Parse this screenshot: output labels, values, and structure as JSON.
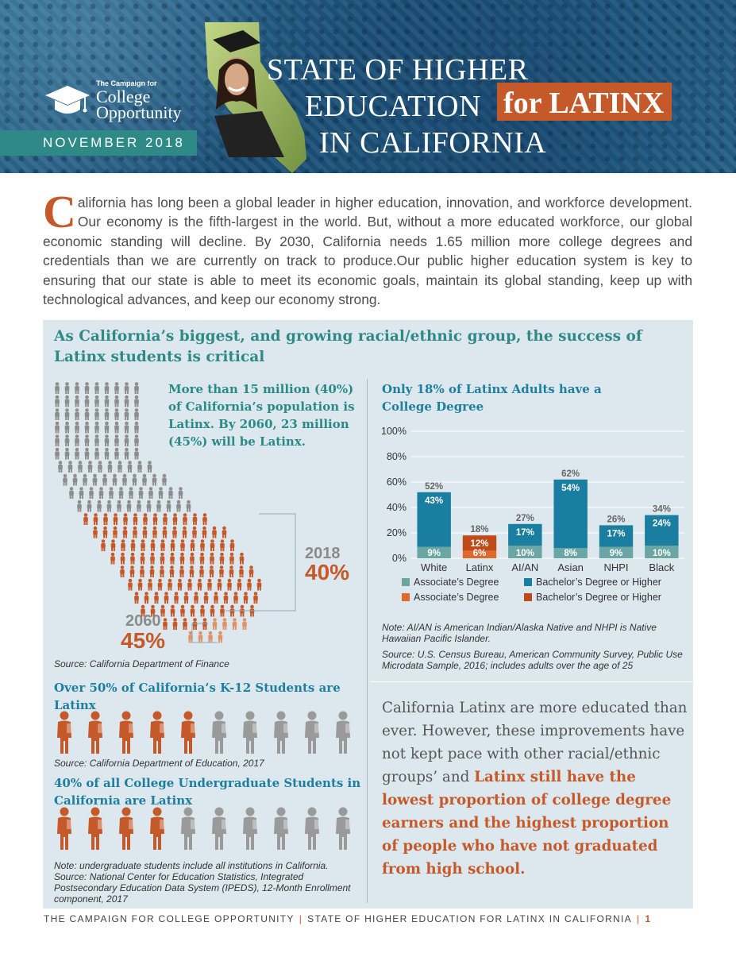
{
  "header": {
    "logo_small": "The Campaign for",
    "logo_line1": "College",
    "logo_line2": "Opportunity",
    "date": "NOVEMBER 2018",
    "title_line1": "STATE OF HIGHER",
    "title_line2": "EDUCATION",
    "title_highlight": "for LATINX",
    "title_line3": "IN CALIFORNIA",
    "colors": {
      "banner": "#1b4f77",
      "accent": "#c6592a",
      "teal": "#2f8a87"
    }
  },
  "intro": {
    "dropcap": "C",
    "text": "alifornia has long been a global leader in higher education, innovation, and workforce development. Our economy is the fifth-largest in the world. But, without a more educated workforce, our global economic standing will decline. By 2030, California needs 1.65 million more college degrees and credentials than we are currently on track to produce.Our public higher education system is key to ensuring that our state is able to meet its economic goals, maintain its global standing, keep up with technological advances, and keep our economy strong."
  },
  "panel": {
    "title": "As California’s biggest, and growing racial/ethnic group, the success of Latinx students is critical",
    "population": {
      "text": "More than 15 million (40%) of California’s population is Latinx. By 2060, 23 million (45%) will be Latinx.",
      "year_2018": "2018",
      "pct_2018": "40%",
      "year_2060": "2060",
      "pct_2060": "45%",
      "source": "Source: California Department of Finance",
      "share_2018": 0.4,
      "share_2060": 0.45
    },
    "k12": {
      "title": "Over 50% of California’s K-12 Students are Latinx",
      "source": "Source: California Department of Education, 2017",
      "latinx_count": 5,
      "total_count": 10
    },
    "undergrad": {
      "title": "40% of all College Undergraduate Students in California are Latinx",
      "note": "Note: undergraduate students include all institutions in California. Source: National Center for Education Statistics, Integrated Postsecondary Education Data System (IPEDS), 12-Month Enrollment component, 2017",
      "latinx_count": 4,
      "total_count": 10
    },
    "chart_title": "Only 18% of Latinx Adults have a College Degree",
    "legend": {
      "assoc": "Associate’s Degree",
      "bach": "Bachelor’s Degree or Higher",
      "assoc_latinx": "Associate’s Degree",
      "bach_latinx": "Bachelor’s Degree or Higher"
    },
    "chart_note": "Note: AI/AN is American Indian/Alaska Native and NHPI is Native Hawaiian Pacific Islander.",
    "chart_source": "Source: U.S. Census Bureau, American Community Survey, Public Use Microdata Sample, 2016; includes adults over the age of 25",
    "closing_plain": "California Latinx are more educated than ever. However, these improvements have not kept pace with other racial/ethnic groups’ and ",
    "closing_emphasis": "Latinx still have the lowest proportion of college degree earners and the highest proportion of people who have not graduated from high school."
  },
  "chart_data": {
    "type": "bar",
    "stacked": true,
    "title": "Only 18% of Latinx Adults have a College Degree",
    "categories": [
      "White",
      "Latinx",
      "AI/AN",
      "Asian",
      "NHPI",
      "Black"
    ],
    "series": [
      {
        "name": "Associate’s Degree",
        "values": [
          9,
          6,
          10,
          8,
          9,
          10
        ],
        "labels": [
          "9%",
          "6%",
          "10%",
          "8%",
          "9%",
          "10%"
        ]
      },
      {
        "name": "Bachelor’s Degree or Higher",
        "values": [
          43,
          12,
          17,
          54,
          17,
          24
        ],
        "labels": [
          "43%",
          "12%",
          "17%",
          "54%",
          "17%",
          "24%"
        ]
      }
    ],
    "totals": [
      52,
      18,
      27,
      62,
      26,
      34
    ],
    "total_labels": [
      "52%",
      "18%",
      "27%",
      "62%",
      "26%",
      "34%"
    ],
    "y_ticks": [
      "0%",
      "20%",
      "40%",
      "60%",
      "80%",
      "100%"
    ],
    "ylim": [
      0,
      100
    ],
    "highlight_category": "Latinx",
    "colors": {
      "assoc": "#6aa6a4",
      "bach": "#1a7ea0",
      "assoc_highlight": "#e06a2e",
      "bach_highlight": "#c04a1a"
    },
    "grid": true,
    "legend_position": "bottom"
  },
  "footer": {
    "left": "THE CAMPAIGN FOR COLLEGE OPPORTUNITY",
    "right": "STATE OF HIGHER EDUCATION FOR LATINX IN CALIFORNIA",
    "page": "1",
    "sep": "|"
  }
}
